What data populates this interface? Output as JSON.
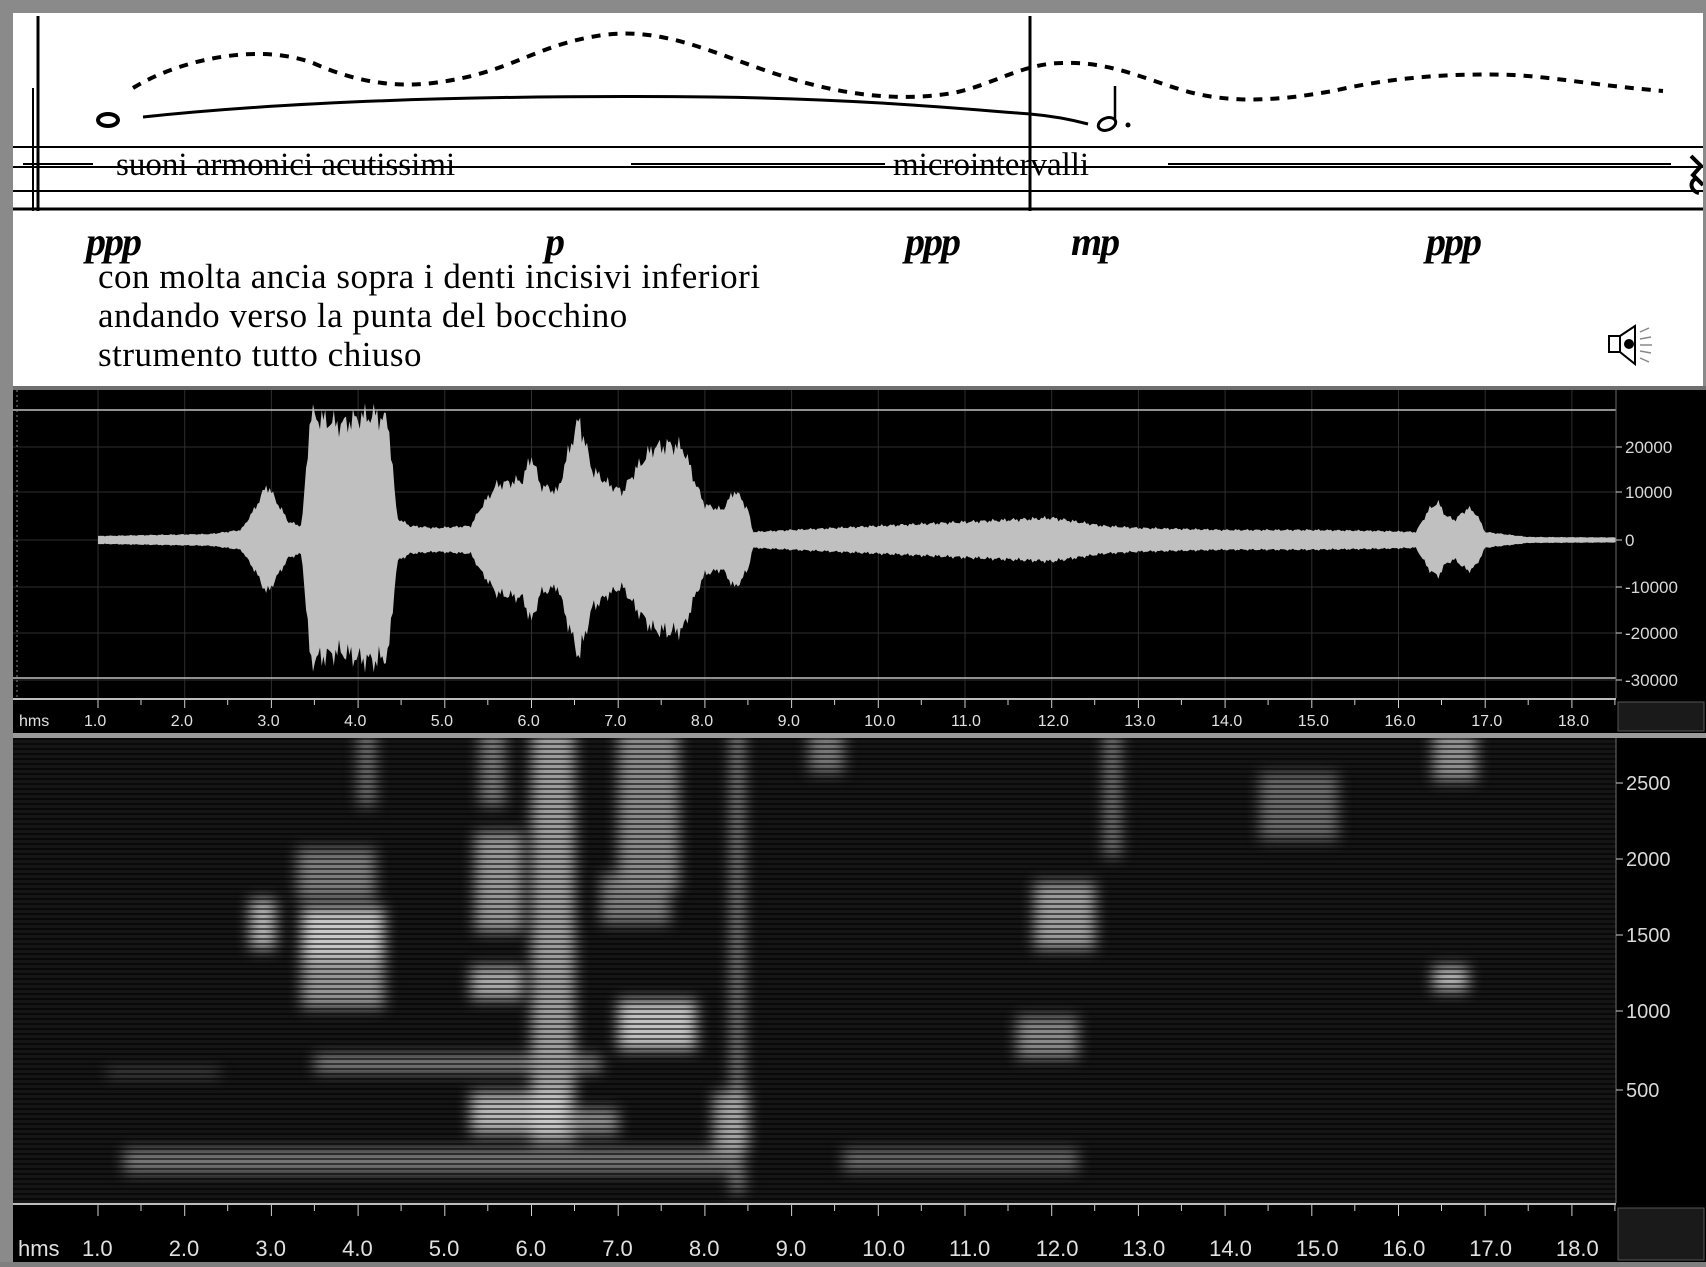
{
  "score": {
    "technique_left": "suoni armonici acutissimi",
    "technique_right": "microintervalli",
    "dynamics": [
      "ppp",
      "p",
      "ppp",
      "mp",
      "ppp"
    ],
    "instructions": [
      "con molta ancia sopra i denti incisivi inferiori",
      "andando verso la punta del bocchino",
      "strumento tutto chiuso"
    ],
    "speaker_icon": "speaker-icon"
  },
  "waveform": {
    "y_labels": [
      "20000",
      "10000",
      "0",
      "-10000",
      "-20000",
      "-30000"
    ],
    "unit_label": "hms",
    "x_labels": [
      "1.0",
      "2.0",
      "3.0",
      "4.0",
      "5.0",
      "6.0",
      "7.0",
      "8.0",
      "9.0",
      "10.0",
      "11.0",
      "12.0",
      "13.0",
      "14.0",
      "15.0",
      "16.0",
      "17.0",
      "18.0"
    ]
  },
  "spectrogram": {
    "y_labels": [
      "2500",
      "2000",
      "1500",
      "1000",
      "500"
    ],
    "unit_label": "hms",
    "x_labels": [
      "1.0",
      "2.0",
      "3.0",
      "4.0",
      "5.0",
      "6.0",
      "7.0",
      "8.0",
      "9.0",
      "10.0",
      "11.0",
      "12.0",
      "13.0",
      "14.0",
      "15.0",
      "16.0",
      "17.0",
      "18.0"
    ]
  },
  "colors": {
    "waveform_fill": "#c0c0c0",
    "panel_bg": "#000000",
    "grid": "#3a3a3a",
    "spectrogram_bg": "#151515"
  }
}
